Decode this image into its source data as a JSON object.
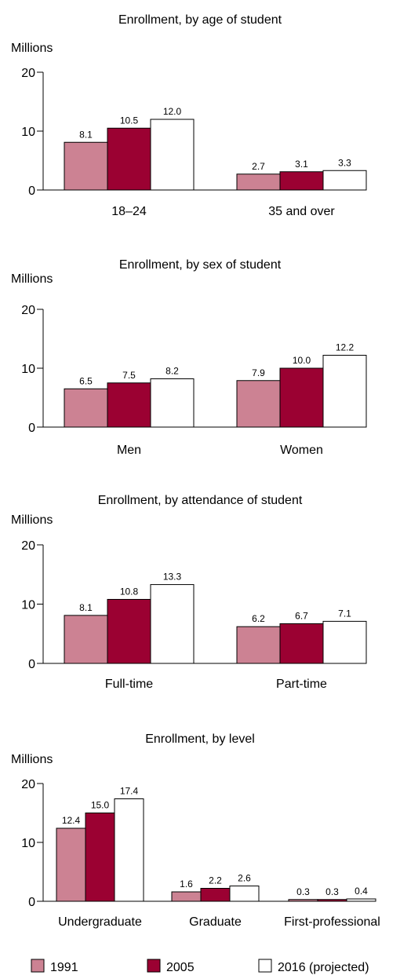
{
  "colors": {
    "1991": "#cc8293",
    "2005": "#9b0132",
    "2016": "#ffffff",
    "outline": "#000000"
  },
  "legend": [
    {
      "key": "1991",
      "label": "1991"
    },
    {
      "key": "2005",
      "label": "2005"
    },
    {
      "key": "2016",
      "label": "2016 (projected)"
    }
  ],
  "chart_data": [
    {
      "type": "bar",
      "title": "Enrollment, by age of student",
      "ylabel": "Millions",
      "ylim": [
        0,
        20
      ],
      "yticks": [
        "0",
        "10",
        "20"
      ],
      "categories": [
        "18–24",
        "35 and over"
      ],
      "series": [
        {
          "name": "1991",
          "values": [
            8.1,
            2.7
          ],
          "labels": [
            "8.1",
            "2.7"
          ]
        },
        {
          "name": "2005",
          "values": [
            10.5,
            3.1
          ],
          "labels": [
            "10.5",
            "3.1"
          ]
        },
        {
          "name": "2016 (projected)",
          "values": [
            12.0,
            3.3
          ],
          "labels": [
            "12.0",
            "3.3"
          ]
        }
      ]
    },
    {
      "type": "bar",
      "title": "Enrollment, by sex of student",
      "ylabel": "Millions",
      "ylim": [
        0,
        20
      ],
      "yticks": [
        "0",
        "10",
        "20"
      ],
      "categories": [
        "Men",
        "Women"
      ],
      "series": [
        {
          "name": "1991",
          "values": [
            6.5,
            7.9
          ],
          "labels": [
            "6.5",
            "7.9"
          ]
        },
        {
          "name": "2005",
          "values": [
            7.5,
            10.0
          ],
          "labels": [
            "7.5",
            "10.0"
          ]
        },
        {
          "name": "2016 (projected)",
          "values": [
            8.2,
            12.2
          ],
          "labels": [
            "8.2",
            "12.2"
          ]
        }
      ]
    },
    {
      "type": "bar",
      "title": "Enrollment, by attendance of student",
      "ylabel": "Millions",
      "ylim": [
        0,
        20
      ],
      "yticks": [
        "0",
        "10",
        "20"
      ],
      "categories": [
        "Full-time",
        "Part-time"
      ],
      "series": [
        {
          "name": "1991",
          "values": [
            8.1,
            6.2
          ],
          "labels": [
            "8.1",
            "6.2"
          ]
        },
        {
          "name": "2005",
          "values": [
            10.8,
            6.7
          ],
          "labels": [
            "10.8",
            "6.7"
          ]
        },
        {
          "name": "2016 (projected)",
          "values": [
            13.3,
            7.1
          ],
          "labels": [
            "13.3",
            "7.1"
          ]
        }
      ]
    },
    {
      "type": "bar",
      "title": "Enrollment, by level",
      "ylabel": "Millions",
      "ylim": [
        0,
        20
      ],
      "yticks": [
        "0",
        "10",
        "20"
      ],
      "categories": [
        "Undergraduate",
        "Graduate",
        "First-professional"
      ],
      "series": [
        {
          "name": "1991",
          "values": [
            12.4,
            1.6,
            0.3
          ],
          "labels": [
            "12.4",
            "1.6",
            "0.3"
          ]
        },
        {
          "name": "2005",
          "values": [
            15.0,
            2.2,
            0.3
          ],
          "labels": [
            "15.0",
            "2.2",
            "0.3"
          ]
        },
        {
          "name": "2016 (projected)",
          "values": [
            17.4,
            2.6,
            0.4
          ],
          "labels": [
            "17.4",
            "2.6",
            "0.4"
          ]
        }
      ]
    }
  ]
}
